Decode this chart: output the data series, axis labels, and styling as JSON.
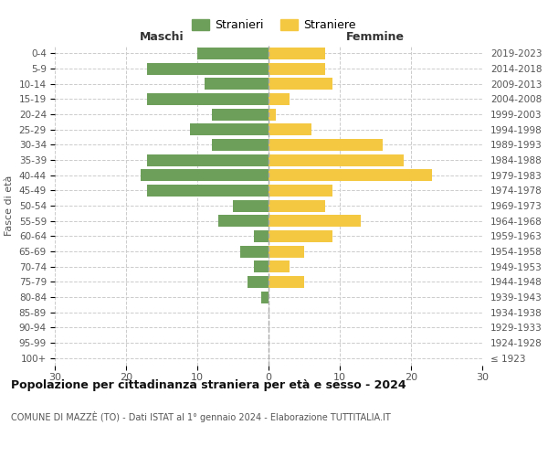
{
  "age_groups": [
    "100+",
    "95-99",
    "90-94",
    "85-89",
    "80-84",
    "75-79",
    "70-74",
    "65-69",
    "60-64",
    "55-59",
    "50-54",
    "45-49",
    "40-44",
    "35-39",
    "30-34",
    "25-29",
    "20-24",
    "15-19",
    "10-14",
    "5-9",
    "0-4"
  ],
  "birth_years": [
    "≤ 1923",
    "1924-1928",
    "1929-1933",
    "1934-1938",
    "1939-1943",
    "1944-1948",
    "1949-1953",
    "1954-1958",
    "1959-1963",
    "1964-1968",
    "1969-1973",
    "1974-1978",
    "1979-1983",
    "1984-1988",
    "1989-1993",
    "1994-1998",
    "1999-2003",
    "2004-2008",
    "2009-2013",
    "2014-2018",
    "2019-2023"
  ],
  "males": [
    0,
    0,
    0,
    0,
    1,
    3,
    2,
    4,
    2,
    7,
    5,
    17,
    18,
    17,
    8,
    11,
    8,
    17,
    9,
    17,
    10
  ],
  "females": [
    0,
    0,
    0,
    0,
    0,
    5,
    3,
    5,
    9,
    13,
    8,
    9,
    23,
    19,
    16,
    6,
    1,
    3,
    9,
    8,
    8
  ],
  "male_color": "#6d9e5a",
  "female_color": "#f5c842",
  "title": "Popolazione per cittadinanza straniera per età e sesso - 2024",
  "subtitle": "COMUNE DI MAZZÈ (TO) - Dati ISTAT al 1° gennaio 2024 - Elaborazione TUTTITALIA.IT",
  "ylabel_left": "Fasce di età",
  "xlabel_left": "Maschi",
  "xlabel_right": "Femmine",
  "legend_male": "Stranieri",
  "legend_female": "Straniere",
  "xlim": 30,
  "background_color": "#ffffff",
  "grid_color": "#cccccc"
}
